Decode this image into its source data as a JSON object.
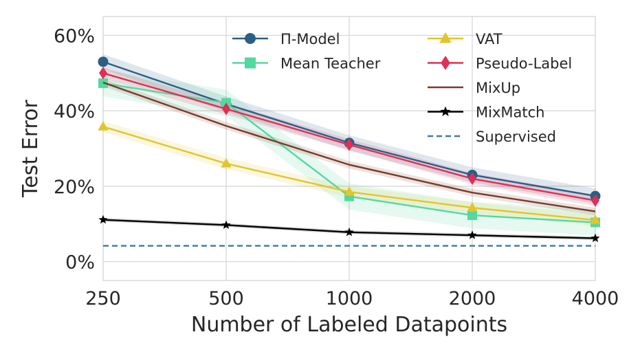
{
  "chart_data": {
    "type": "line",
    "xlabel": "Number of Labeled Datapoints",
    "ylabel": "Test Error",
    "categories": [
      "250",
      "500",
      "1000",
      "2000",
      "4000"
    ],
    "ylim": [
      -5,
      65
    ],
    "yticks": [
      0,
      20,
      40,
      60
    ],
    "ytick_labels": [
      "0%",
      "20%",
      "40%",
      "60%"
    ],
    "grid": true,
    "legend_position": "top",
    "series": [
      {
        "name": "Π-Model",
        "values": [
          53.0,
          41.8,
          31.5,
          23.0,
          17.4
        ],
        "color": "#2b5f86",
        "marker": "circle",
        "band": 2.0
      },
      {
        "name": "Mean Teacher",
        "values": [
          47.3,
          42.1,
          17.3,
          12.3,
          10.4
        ],
        "color": "#54d8a0",
        "marker": "square",
        "band": 3.5
      },
      {
        "name": "VAT",
        "values": [
          35.8,
          26.0,
          18.5,
          14.3,
          11.0
        ],
        "color": "#e2c52a",
        "marker": "triangle",
        "band": 1.5
      },
      {
        "name": "Pseudo-Label",
        "values": [
          50.0,
          40.5,
          31.0,
          22.0,
          16.2
        ],
        "color": "#e02e55",
        "marker": "diamond",
        "band": 1.5
      },
      {
        "name": "MixUp",
        "values": [
          47.5,
          36.0,
          25.7,
          18.3,
          13.3
        ],
        "color": "#7b3a28",
        "marker": "none",
        "band": 1.0
      },
      {
        "name": "MixMatch",
        "values": [
          11.1,
          9.7,
          7.8,
          7.0,
          6.2
        ],
        "color": "#000000",
        "marker": "star",
        "band": 0.5
      },
      {
        "name": "Supervised",
        "values": [
          4.2,
          4.2,
          4.2,
          4.2,
          4.2
        ],
        "color": "#3a78a8",
        "marker": "none",
        "dashed": true,
        "band": 0
      }
    ]
  }
}
